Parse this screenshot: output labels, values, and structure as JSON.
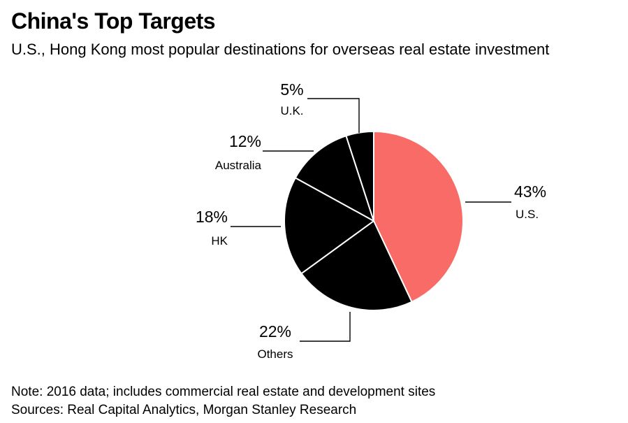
{
  "title": "China's Top Targets",
  "subtitle": "U.S., Hong Kong most popular destinations for overseas real estate investment",
  "note": "Note: 2016 data; includes commercial real estate and development sites",
  "sources": "Sources: Real Capital Analytics, Morgan Stanley Research",
  "chart_data": {
    "type": "pie",
    "start": "12 o'clock",
    "direction": "clockwise",
    "slices": [
      {
        "label": "U.S.",
        "value": 43,
        "value_label": "43%",
        "color": "#f96b67"
      },
      {
        "label": "Others",
        "value": 22,
        "value_label": "22%",
        "color": "#000000"
      },
      {
        "label": "HK",
        "value": 18,
        "value_label": "18%",
        "color": "#000000"
      },
      {
        "label": "Australia",
        "value": 12,
        "value_label": "12%",
        "color": "#000000"
      },
      {
        "label": "U.K.",
        "value": 5,
        "value_label": "5%",
        "color": "#000000"
      }
    ],
    "slice_border_color": "#ffffff"
  }
}
